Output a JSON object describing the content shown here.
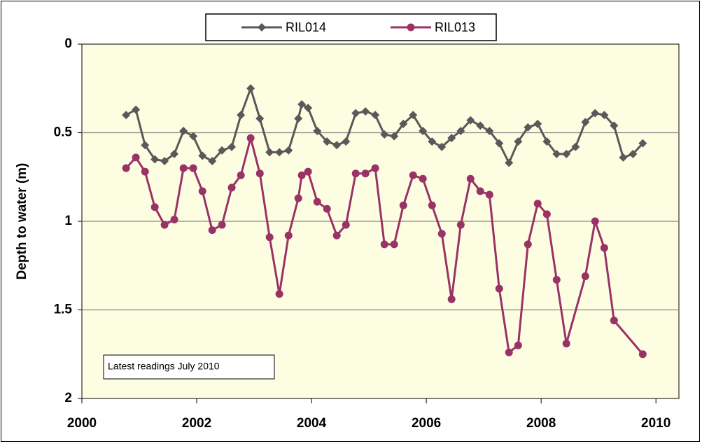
{
  "chart_data": {
    "type": "line",
    "y_label": "Depth to water  (m)",
    "annotation": "Latest  readings  July 2010",
    "xlim": [
      2000,
      2010.4
    ],
    "xticks": [
      2000,
      2002,
      2004,
      2006,
      2008,
      2010
    ],
    "ylim": [
      0,
      2
    ],
    "yticks": [
      0,
      0.5,
      1,
      1.5,
      2
    ],
    "y_inverted": true,
    "grid": true,
    "legend": "top",
    "series": [
      {
        "name": "RIL014",
        "color": "#595959",
        "marker": "diamond",
        "x": [
          2000.77,
          2000.94,
          2001.1,
          2001.27,
          2001.44,
          2001.61,
          2001.77,
          2001.94,
          2002.1,
          2002.27,
          2002.44,
          2002.61,
          2002.77,
          2002.94,
          2003.1,
          2003.27,
          2003.44,
          2003.6,
          2003.77,
          2003.83,
          2003.94,
          2004.1,
          2004.27,
          2004.44,
          2004.6,
          2004.77,
          2004.94,
          2005.11,
          2005.27,
          2005.44,
          2005.6,
          2005.77,
          2005.94,
          2006.1,
          2006.27,
          2006.44,
          2006.6,
          2006.77,
          2006.94,
          2007.1,
          2007.27,
          2007.44,
          2007.6,
          2007.77,
          2007.94,
          2008.1,
          2008.27,
          2008.44,
          2008.6,
          2008.77,
          2008.94,
          2009.1,
          2009.27,
          2009.43,
          2009.6,
          2009.77
        ],
        "values": [
          0.4,
          0.37,
          0.57,
          0.65,
          0.66,
          0.62,
          0.49,
          0.52,
          0.63,
          0.66,
          0.6,
          0.58,
          0.4,
          0.25,
          0.42,
          0.61,
          0.61,
          0.6,
          0.42,
          0.34,
          0.36,
          0.49,
          0.55,
          0.57,
          0.55,
          0.39,
          0.38,
          0.4,
          0.51,
          0.52,
          0.45,
          0.4,
          0.49,
          0.55,
          0.58,
          0.53,
          0.49,
          0.43,
          0.46,
          0.49,
          0.56,
          0.67,
          0.55,
          0.47,
          0.45,
          0.55,
          0.62,
          0.62,
          0.58,
          0.44,
          0.39,
          0.4,
          0.46,
          0.64,
          0.62,
          0.56
        ]
      },
      {
        "name": "RIL013",
        "color": "#993366",
        "marker": "circle",
        "x": [
          2000.77,
          2000.94,
          2001.1,
          2001.27,
          2001.44,
          2001.61,
          2001.77,
          2001.94,
          2002.1,
          2002.27,
          2002.44,
          2002.61,
          2002.77,
          2002.94,
          2003.1,
          2003.27,
          2003.44,
          2003.6,
          2003.77,
          2003.83,
          2003.94,
          2004.1,
          2004.27,
          2004.44,
          2004.6,
          2004.77,
          2004.94,
          2005.11,
          2005.27,
          2005.44,
          2005.6,
          2005.77,
          2005.94,
          2006.1,
          2006.27,
          2006.44,
          2006.6,
          2006.77,
          2006.94,
          2007.1,
          2007.27,
          2007.44,
          2007.6,
          2007.77,
          2007.94,
          2008.1,
          2008.27,
          2008.44,
          2008.77,
          2008.94,
          2009.1,
          2009.27,
          2009.77
        ],
        "values": [
          0.7,
          0.64,
          0.72,
          0.92,
          1.02,
          0.99,
          0.7,
          0.7,
          0.83,
          1.05,
          1.02,
          0.81,
          0.74,
          0.53,
          0.73,
          1.09,
          1.41,
          1.08,
          0.87,
          0.74,
          0.72,
          0.89,
          0.93,
          1.08,
          1.02,
          0.73,
          0.73,
          0.7,
          1.13,
          1.13,
          0.91,
          0.74,
          0.76,
          0.91,
          1.07,
          1.44,
          1.02,
          0.76,
          0.83,
          0.85,
          1.38,
          1.74,
          1.7,
          1.13,
          0.9,
          0.96,
          1.33,
          1.69,
          1.31,
          1.0,
          1.15,
          1.56,
          1.75
        ]
      }
    ]
  }
}
